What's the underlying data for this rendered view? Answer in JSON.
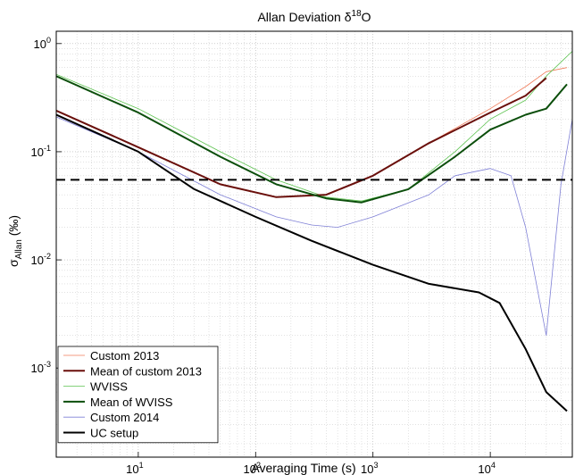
{
  "chart_data": {
    "type": "line",
    "title": "Allan Deviation δ18O",
    "title_parts": {
      "prefix": "Allan Deviation δ",
      "sup": "18",
      "suffix": "O"
    },
    "xlabel": "Averaging Time (s)",
    "ylabel_parts": {
      "sigma": "σ",
      "sub": "Allan",
      "unit": "(‰)"
    },
    "x_scale": "log",
    "y_scale": "log",
    "xlim": [
      2,
      50000
    ],
    "ylim": [
      0.00015,
      1.3
    ],
    "grid": true,
    "legend_position": "lower-left",
    "x_ticks": [
      {
        "base": "10",
        "exp": "1",
        "value": 10
      },
      {
        "base": "10",
        "exp": "2",
        "value": 100
      },
      {
        "base": "10",
        "exp": "3",
        "value": 1000
      },
      {
        "base": "10",
        "exp": "4",
        "value": 10000
      }
    ],
    "y_ticks": [
      {
        "base": "10",
        "exp": "-3",
        "value": 0.001
      },
      {
        "base": "10",
        "exp": "-2",
        "value": 0.01
      },
      {
        "base": "10",
        "exp": "-1",
        "value": 0.1
      },
      {
        "base": "10",
        "exp": "0",
        "value": 1
      }
    ],
    "reference_line": {
      "y": 0.055,
      "style": "dashed",
      "color": "#000000"
    },
    "series": [
      {
        "name": "Custom 2013",
        "color": "#f07c5a",
        "width": 0.8,
        "points": [
          [
            2,
            0.24
          ],
          [
            10,
            0.11
          ],
          [
            50,
            0.05
          ],
          [
            150,
            0.038
          ],
          [
            400,
            0.04
          ],
          [
            1000,
            0.06
          ],
          [
            3000,
            0.12
          ],
          [
            10000,
            0.25
          ],
          [
            20000,
            0.4
          ],
          [
            30000,
            0.55
          ],
          [
            45000,
            0.6
          ]
        ]
      },
      {
        "name": "Mean of custom 2013",
        "color": "#6a0f0b",
        "width": 2,
        "points": [
          [
            2,
            0.24
          ],
          [
            10,
            0.11
          ],
          [
            50,
            0.05
          ],
          [
            150,
            0.038
          ],
          [
            400,
            0.04
          ],
          [
            1000,
            0.06
          ],
          [
            3000,
            0.12
          ],
          [
            10000,
            0.23
          ],
          [
            20000,
            0.33
          ],
          [
            30000,
            0.48
          ]
        ]
      },
      {
        "name": "WVISS",
        "color": "#5dc350",
        "width": 0.8,
        "points": [
          [
            2,
            0.52
          ],
          [
            10,
            0.25
          ],
          [
            50,
            0.1
          ],
          [
            150,
            0.055
          ],
          [
            400,
            0.038
          ],
          [
            800,
            0.035
          ],
          [
            2000,
            0.045
          ],
          [
            5000,
            0.1
          ],
          [
            10000,
            0.2
          ],
          [
            20000,
            0.3
          ],
          [
            30000,
            0.5
          ],
          [
            50000,
            0.85
          ]
        ]
      },
      {
        "name": "Mean of WVISS",
        "color": "#0b4e0b",
        "width": 2,
        "points": [
          [
            2,
            0.5
          ],
          [
            10,
            0.23
          ],
          [
            50,
            0.09
          ],
          [
            150,
            0.05
          ],
          [
            400,
            0.037
          ],
          [
            800,
            0.034
          ],
          [
            2000,
            0.045
          ],
          [
            5000,
            0.09
          ],
          [
            10000,
            0.16
          ],
          [
            20000,
            0.22
          ],
          [
            30000,
            0.25
          ],
          [
            45000,
            0.42
          ]
        ]
      },
      {
        "name": "Custom 2014",
        "color": "#7f80d6",
        "width": 0.8,
        "points": [
          [
            2,
            0.21
          ],
          [
            10,
            0.1
          ],
          [
            50,
            0.04
          ],
          [
            150,
            0.025
          ],
          [
            300,
            0.021
          ],
          [
            500,
            0.02
          ],
          [
            1000,
            0.025
          ],
          [
            3000,
            0.04
          ],
          [
            5000,
            0.06
          ],
          [
            10000,
            0.07
          ],
          [
            15000,
            0.06
          ],
          [
            20000,
            0.02
          ],
          [
            30000,
            0.002
          ],
          [
            40000,
            0.05
          ],
          [
            50000,
            0.2
          ]
        ]
      },
      {
        "name": "UC setup",
        "color": "#000000",
        "width": 2,
        "points": [
          [
            2,
            0.22
          ],
          [
            10,
            0.1
          ],
          [
            30,
            0.045
          ],
          [
            100,
            0.025
          ],
          [
            300,
            0.015
          ],
          [
            1000,
            0.009
          ],
          [
            3000,
            0.006
          ],
          [
            8000,
            0.005
          ],
          [
            12000,
            0.004
          ],
          [
            20000,
            0.0015
          ],
          [
            30000,
            0.0006
          ],
          [
            45000,
            0.0004
          ]
        ]
      }
    ]
  }
}
